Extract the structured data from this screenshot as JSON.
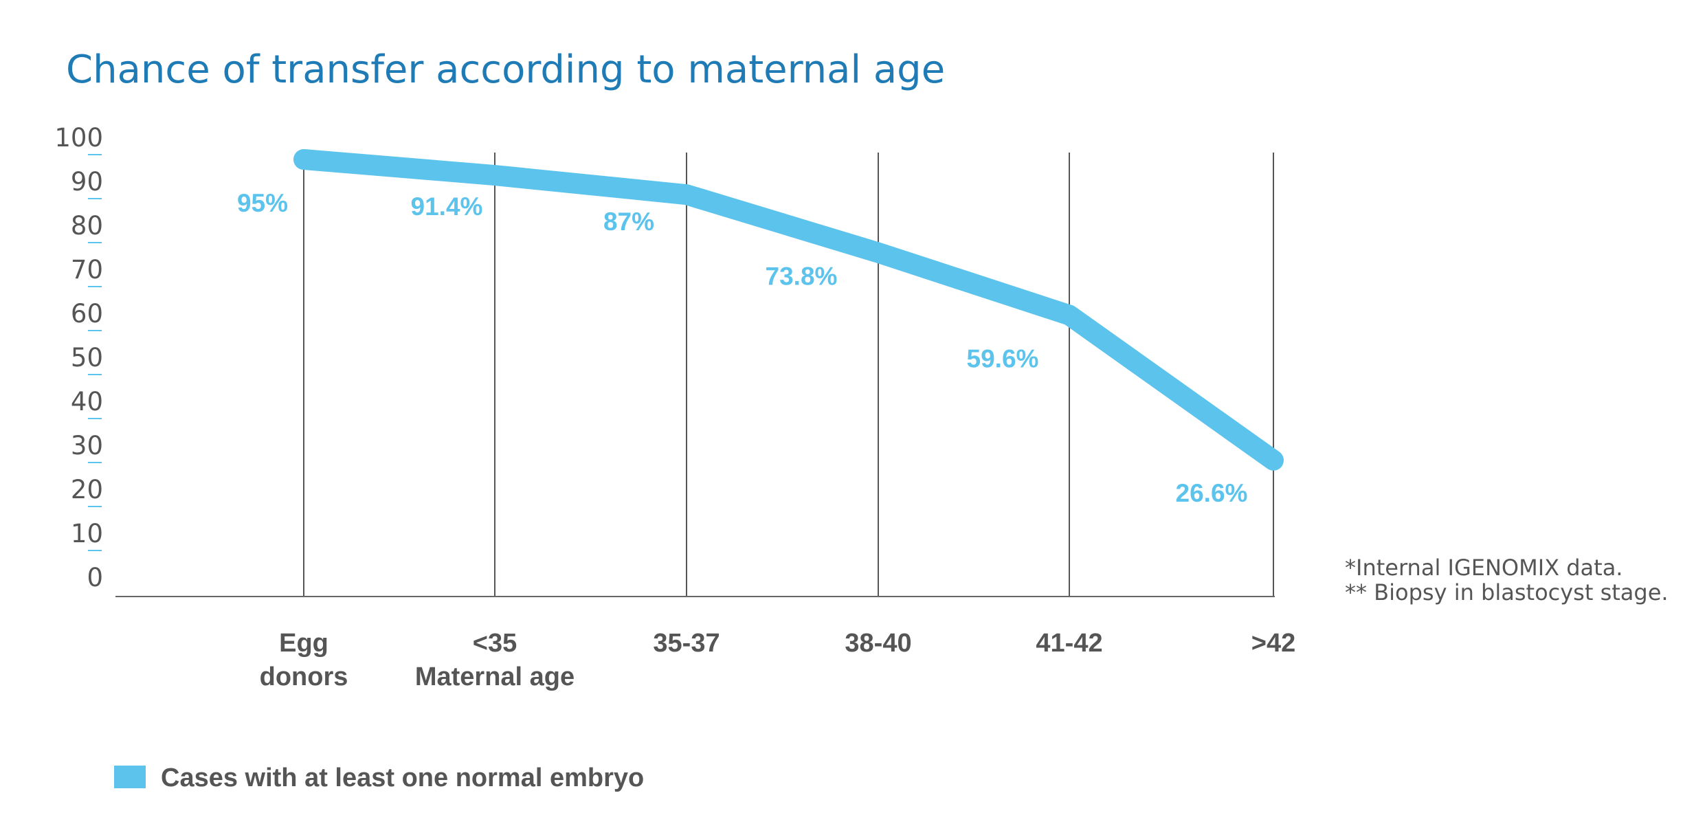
{
  "chart_data": {
    "type": "line",
    "title": "Chance of transfer according to maternal age",
    "xlabel": "Maternal age",
    "ylabel": "",
    "ylim": [
      0,
      100
    ],
    "yticks": [
      "0",
      "10",
      "20",
      "30",
      "40",
      "50",
      "60",
      "70",
      "80",
      "90",
      "100"
    ],
    "categories": [
      [
        "Egg",
        "donors"
      ],
      [
        "<35"
      ],
      [
        "35-37"
      ],
      [
        "38-40"
      ],
      [
        "41-42"
      ],
      [
        ">42"
      ]
    ],
    "series": [
      {
        "name": "Cases with at least one normal embryo",
        "values": [
          95,
          91.4,
          87,
          73.8,
          59.6,
          26.6
        ],
        "labels": [
          "95%",
          "91.4%",
          "87%",
          "73.8%",
          "59.6%",
          "26.6%"
        ],
        "color": "#5cc3ec"
      }
    ],
    "grid": "vertical",
    "legend": "bottom-left",
    "notes": [
      "*Internal IGENOMIX data.",
      "** Biopsy in blastocyst stage."
    ]
  }
}
